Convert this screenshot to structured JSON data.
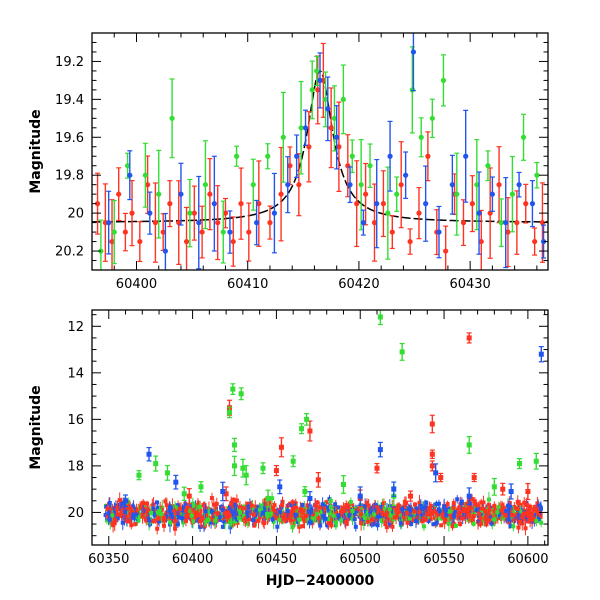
{
  "chart_data": [
    {
      "type": "scatter",
      "title": "",
      "xlabel": "",
      "ylabel": "Magnitude",
      "xlim": [
        60396,
        60437
      ],
      "ylim": [
        20.3,
        19.05
      ],
      "y_inverted": true,
      "grid": false,
      "x_ticks": [
        "60400",
        "60410",
        "60420",
        "60430"
      ],
      "y_ticks": [
        "19.2",
        "19.4",
        "19.6",
        "19.8",
        "20",
        "20.2"
      ],
      "model_curve": {
        "shape": "lorentzian",
        "baseline": 20.05,
        "peak": 19.25,
        "center": 60416.5,
        "width": 1.4,
        "color": "#000000"
      },
      "series": [
        {
          "color": "#ff3322",
          "points": [
            [
              60396.5,
              19.95
            ],
            [
              60397.2,
              20.05
            ],
            [
              60397.8,
              20.15
            ],
            [
              60398.4,
              19.9
            ],
            [
              60399.0,
              20.1
            ],
            [
              60399.6,
              20.0
            ],
            [
              60400.3,
              20.15
            ],
            [
              60401.0,
              19.85
            ],
            [
              60401.7,
              20.05
            ],
            [
              60402.4,
              20.1
            ],
            [
              60403.0,
              19.95
            ],
            [
              60403.8,
              20.05
            ],
            [
              60404.5,
              20.15
            ],
            [
              60405.2,
              20.0
            ],
            [
              60405.9,
              20.1
            ],
            [
              60406.6,
              19.9
            ],
            [
              60407.3,
              20.05
            ],
            [
              60408.0,
              20.0
            ],
            [
              60408.7,
              20.15
            ],
            [
              60409.4,
              19.95
            ],
            [
              60410.1,
              20.1
            ],
            [
              60411.0,
              19.95
            ],
            [
              60412.0,
              20.05
            ],
            [
              60413.0,
              19.9
            ],
            [
              60413.8,
              19.75
            ],
            [
              60414.6,
              19.85
            ],
            [
              60415.5,
              19.65
            ],
            [
              60416.3,
              19.35
            ],
            [
              60416.8,
              19.3
            ],
            [
              60417.5,
              19.55
            ],
            [
              60418.2,
              19.65
            ],
            [
              60419.0,
              19.75
            ],
            [
              60419.8,
              19.95
            ],
            [
              60420.6,
              19.9
            ],
            [
              60421.4,
              20.05
            ],
            [
              60422.2,
              19.95
            ],
            [
              60423.0,
              20.1
            ],
            [
              60423.8,
              19.85
            ],
            [
              60424.6,
              20.15
            ],
            [
              60425.4,
              20.0
            ],
            [
              60426.2,
              19.7
            ],
            [
              60427.0,
              20.1
            ],
            [
              60427.8,
              20.2
            ],
            [
              60428.6,
              19.9
            ],
            [
              60429.4,
              20.05
            ],
            [
              60430.2,
              19.95
            ],
            [
              60431.0,
              20.15
            ],
            [
              60431.8,
              20.0
            ],
            [
              60432.6,
              19.85
            ],
            [
              60433.4,
              20.1
            ],
            [
              60434.2,
              20.05
            ],
            [
              60435.0,
              19.95
            ],
            [
              60435.8,
              20.15
            ],
            [
              60436.5,
              20.05
            ]
          ]
        },
        {
          "color": "#33dd33",
          "points": [
            [
              60396.8,
              20.2
            ],
            [
              60398.0,
              20.1
            ],
            [
              60399.2,
              19.75
            ],
            [
              60400.8,
              19.8
            ],
            [
              60402.0,
              19.9
            ],
            [
              60403.2,
              19.5
            ],
            [
              60404.8,
              20.0
            ],
            [
              60406.2,
              19.85
            ],
            [
              60407.8,
              20.1
            ],
            [
              60409.0,
              19.7
            ],
            [
              60410.5,
              19.85
            ],
            [
              60411.8,
              19.7
            ],
            [
              60413.2,
              19.6
            ],
            [
              60414.8,
              19.55
            ],
            [
              60415.8,
              19.35
            ],
            [
              60416.2,
              19.25
            ],
            [
              60417.0,
              19.4
            ],
            [
              60417.8,
              19.5
            ],
            [
              60418.6,
              19.4
            ],
            [
              60419.4,
              19.7
            ],
            [
              60420.2,
              19.85
            ],
            [
              60421.0,
              19.75
            ],
            [
              60422.6,
              20.0
            ],
            [
              60423.4,
              19.9
            ],
            [
              60424.8,
              19.35
            ],
            [
              60425.6,
              19.6
            ],
            [
              60426.6,
              19.5
            ],
            [
              60427.6,
              19.3
            ],
            [
              60428.8,
              19.9
            ],
            [
              60430.6,
              19.85
            ],
            [
              60431.6,
              19.75
            ],
            [
              60432.8,
              20.05
            ],
            [
              60433.8,
              19.9
            ],
            [
              60434.8,
              19.6
            ],
            [
              60436.0,
              19.8
            ]
          ]
        },
        {
          "color": "#2255ee",
          "points": [
            [
              60397.5,
              20.05
            ],
            [
              60399.4,
              19.8
            ],
            [
              60401.2,
              20.0
            ],
            [
              60402.6,
              20.2
            ],
            [
              60404.0,
              19.9
            ],
            [
              60405.6,
              20.05
            ],
            [
              60407.0,
              19.95
            ],
            [
              60408.4,
              20.1
            ],
            [
              60410.8,
              20.05
            ],
            [
              60412.4,
              20.0
            ],
            [
              60413.6,
              19.85
            ],
            [
              60414.4,
              19.7
            ],
            [
              60415.2,
              19.55
            ],
            [
              60416.5,
              19.3
            ],
            [
              60417.2,
              19.45
            ],
            [
              60418.0,
              19.6
            ],
            [
              60419.2,
              19.85
            ],
            [
              60420.4,
              20.05
            ],
            [
              60421.6,
              19.95
            ],
            [
              60422.8,
              19.7
            ],
            [
              60424.2,
              19.8
            ],
            [
              60424.9,
              19.15
            ],
            [
              60426.0,
              19.95
            ],
            [
              60427.2,
              20.1
            ],
            [
              60428.4,
              19.85
            ],
            [
              60429.6,
              19.7
            ],
            [
              60430.8,
              20.0
            ],
            [
              60432.0,
              19.9
            ],
            [
              60433.2,
              20.05
            ],
            [
              60434.4,
              19.85
            ],
            [
              60435.6,
              19.95
            ],
            [
              60436.6,
              20.15
            ]
          ]
        }
      ]
    },
    {
      "type": "scatter",
      "title": "",
      "xlabel": "HJD−2400000",
      "ylabel": "Magnitude",
      "xlim": [
        60340,
        60612
      ],
      "ylim": [
        21.4,
        11.3
      ],
      "y_inverted": true,
      "grid": false,
      "x_ticks": [
        "60350",
        "60400",
        "60450",
        "60500",
        "60550",
        "60600"
      ],
      "y_ticks": [
        "12",
        "14",
        "16",
        "18",
        "20"
      ],
      "baseline_band": {
        "x_start": 60348,
        "x_end": 60608,
        "y_center": 20.05,
        "spread": 0.45
      },
      "series": [
        {
          "color": "#ff3322",
          "points": [
            [
              60422,
              15.5
            ],
            [
              60453,
              17.2
            ],
            [
              60470,
              16.5
            ],
            [
              60450,
              18.2
            ],
            [
              60475,
              18.6
            ],
            [
              60510,
              18.1
            ],
            [
              60543,
              16.2
            ],
            [
              60543,
              17.5
            ],
            [
              60543,
              18.0
            ],
            [
              60548,
              18.5
            ],
            [
              60565,
              12.5
            ],
            [
              60568,
              18.5
            ],
            [
              60585,
              19.0
            ],
            [
              60398,
              19.3
            ],
            [
              60420,
              19.2
            ],
            [
              60500,
              19.4
            ],
            [
              60530,
              19.3
            ],
            [
              60600,
              19.1
            ]
          ]
        },
        {
          "color": "#33dd33",
          "points": [
            [
              60512,
              11.6
            ],
            [
              60525,
              13.1
            ],
            [
              60424,
              14.7
            ],
            [
              60429,
              14.9
            ],
            [
              60422,
              15.7
            ],
            [
              60468,
              16.0
            ],
            [
              60465,
              16.4
            ],
            [
              60425,
              17.1
            ],
            [
              60425,
              18.0
            ],
            [
              60430,
              18.1
            ],
            [
              60442,
              18.1
            ],
            [
              60460,
              17.8
            ],
            [
              60378,
              17.9
            ],
            [
              60368,
              18.4
            ],
            [
              60385,
              18.3
            ],
            [
              60405,
              18.9
            ],
            [
              60432,
              18.4
            ],
            [
              60467,
              19.1
            ],
            [
              60490,
              18.8
            ],
            [
              60565,
              17.1
            ],
            [
              60580,
              18.9
            ],
            [
              60595,
              17.9
            ],
            [
              60605,
              17.8
            ],
            [
              60395,
              19.2
            ],
            [
              60445,
              19.4
            ],
            [
              60520,
              19.3
            ]
          ]
        },
        {
          "color": "#2255ee",
          "points": [
            [
              60608,
              13.2
            ],
            [
              60512,
              17.3
            ],
            [
              60374,
              17.5
            ],
            [
              60390,
              18.7
            ],
            [
              60418,
              19.1
            ],
            [
              60452,
              18.9
            ],
            [
              60520,
              19.0
            ],
            [
              60545,
              18.3
            ],
            [
              60565,
              19.3
            ],
            [
              60590,
              19.1
            ],
            [
              60360,
              19.5
            ],
            [
              60470,
              19.4
            ],
            [
              60500,
              19.3
            ]
          ]
        }
      ]
    }
  ]
}
